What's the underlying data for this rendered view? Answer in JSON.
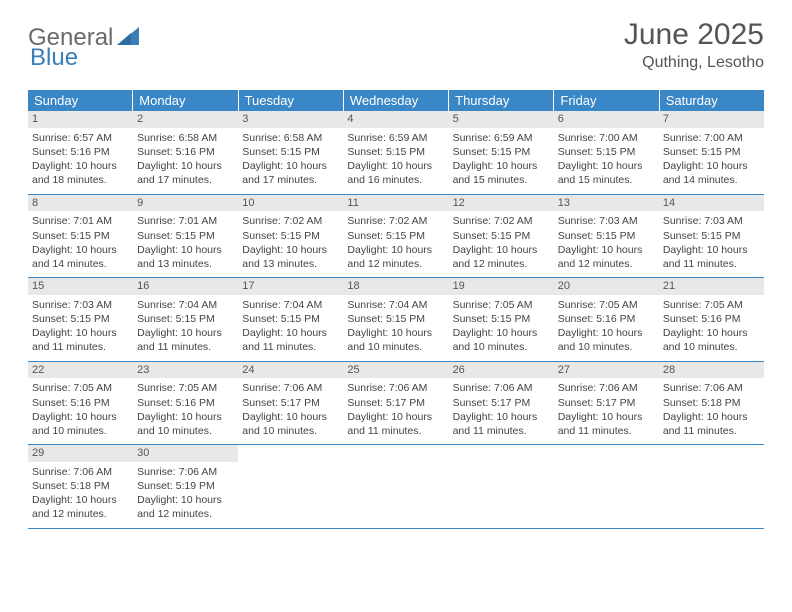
{
  "logo": {
    "word1": "General",
    "word2": "Blue"
  },
  "title": "June 2025",
  "location": "Quthing, Lesotho",
  "day_headers": [
    "Sunday",
    "Monday",
    "Tuesday",
    "Wednesday",
    "Thursday",
    "Friday",
    "Saturday"
  ],
  "colors": {
    "header_bg": "#3a87c7",
    "header_text": "#ffffff",
    "daynum_bg": "#e8e8e8",
    "week_border": "#3a87c7",
    "text": "#444444",
    "title": "#555555",
    "logo_gray": "#6a6a6a",
    "logo_blue": "#3a7fb8"
  },
  "weeks": [
    [
      {
        "n": "1",
        "sunrise": "6:57 AM",
        "sunset": "5:16 PM",
        "daylight": "10 hours and 18 minutes."
      },
      {
        "n": "2",
        "sunrise": "6:58 AM",
        "sunset": "5:16 PM",
        "daylight": "10 hours and 17 minutes."
      },
      {
        "n": "3",
        "sunrise": "6:58 AM",
        "sunset": "5:15 PM",
        "daylight": "10 hours and 17 minutes."
      },
      {
        "n": "4",
        "sunrise": "6:59 AM",
        "sunset": "5:15 PM",
        "daylight": "10 hours and 16 minutes."
      },
      {
        "n": "5",
        "sunrise": "6:59 AM",
        "sunset": "5:15 PM",
        "daylight": "10 hours and 15 minutes."
      },
      {
        "n": "6",
        "sunrise": "7:00 AM",
        "sunset": "5:15 PM",
        "daylight": "10 hours and 15 minutes."
      },
      {
        "n": "7",
        "sunrise": "7:00 AM",
        "sunset": "5:15 PM",
        "daylight": "10 hours and 14 minutes."
      }
    ],
    [
      {
        "n": "8",
        "sunrise": "7:01 AM",
        "sunset": "5:15 PM",
        "daylight": "10 hours and 14 minutes."
      },
      {
        "n": "9",
        "sunrise": "7:01 AM",
        "sunset": "5:15 PM",
        "daylight": "10 hours and 13 minutes."
      },
      {
        "n": "10",
        "sunrise": "7:02 AM",
        "sunset": "5:15 PM",
        "daylight": "10 hours and 13 minutes."
      },
      {
        "n": "11",
        "sunrise": "7:02 AM",
        "sunset": "5:15 PM",
        "daylight": "10 hours and 12 minutes."
      },
      {
        "n": "12",
        "sunrise": "7:02 AM",
        "sunset": "5:15 PM",
        "daylight": "10 hours and 12 minutes."
      },
      {
        "n": "13",
        "sunrise": "7:03 AM",
        "sunset": "5:15 PM",
        "daylight": "10 hours and 12 minutes."
      },
      {
        "n": "14",
        "sunrise": "7:03 AM",
        "sunset": "5:15 PM",
        "daylight": "10 hours and 11 minutes."
      }
    ],
    [
      {
        "n": "15",
        "sunrise": "7:03 AM",
        "sunset": "5:15 PM",
        "daylight": "10 hours and 11 minutes."
      },
      {
        "n": "16",
        "sunrise": "7:04 AM",
        "sunset": "5:15 PM",
        "daylight": "10 hours and 11 minutes."
      },
      {
        "n": "17",
        "sunrise": "7:04 AM",
        "sunset": "5:15 PM",
        "daylight": "10 hours and 11 minutes."
      },
      {
        "n": "18",
        "sunrise": "7:04 AM",
        "sunset": "5:15 PM",
        "daylight": "10 hours and 10 minutes."
      },
      {
        "n": "19",
        "sunrise": "7:05 AM",
        "sunset": "5:15 PM",
        "daylight": "10 hours and 10 minutes."
      },
      {
        "n": "20",
        "sunrise": "7:05 AM",
        "sunset": "5:16 PM",
        "daylight": "10 hours and 10 minutes."
      },
      {
        "n": "21",
        "sunrise": "7:05 AM",
        "sunset": "5:16 PM",
        "daylight": "10 hours and 10 minutes."
      }
    ],
    [
      {
        "n": "22",
        "sunrise": "7:05 AM",
        "sunset": "5:16 PM",
        "daylight": "10 hours and 10 minutes."
      },
      {
        "n": "23",
        "sunrise": "7:05 AM",
        "sunset": "5:16 PM",
        "daylight": "10 hours and 10 minutes."
      },
      {
        "n": "24",
        "sunrise": "7:06 AM",
        "sunset": "5:17 PM",
        "daylight": "10 hours and 10 minutes."
      },
      {
        "n": "25",
        "sunrise": "7:06 AM",
        "sunset": "5:17 PM",
        "daylight": "10 hours and 11 minutes."
      },
      {
        "n": "26",
        "sunrise": "7:06 AM",
        "sunset": "5:17 PM",
        "daylight": "10 hours and 11 minutes."
      },
      {
        "n": "27",
        "sunrise": "7:06 AM",
        "sunset": "5:17 PM",
        "daylight": "10 hours and 11 minutes."
      },
      {
        "n": "28",
        "sunrise": "7:06 AM",
        "sunset": "5:18 PM",
        "daylight": "10 hours and 11 minutes."
      }
    ],
    [
      {
        "n": "29",
        "sunrise": "7:06 AM",
        "sunset": "5:18 PM",
        "daylight": "10 hours and 12 minutes."
      },
      {
        "n": "30",
        "sunrise": "7:06 AM",
        "sunset": "5:19 PM",
        "daylight": "10 hours and 12 minutes."
      },
      {
        "empty": true
      },
      {
        "empty": true
      },
      {
        "empty": true
      },
      {
        "empty": true
      },
      {
        "empty": true
      }
    ]
  ],
  "labels": {
    "sunrise": "Sunrise: ",
    "sunset": "Sunset: ",
    "daylight": "Daylight: "
  }
}
